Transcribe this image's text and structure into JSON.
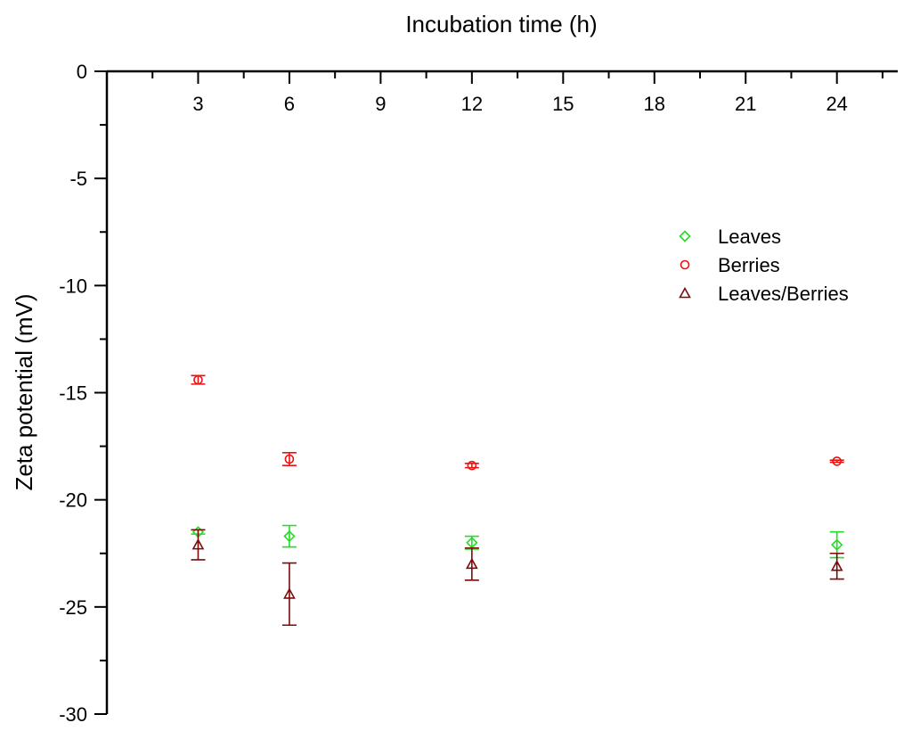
{
  "chart_data": {
    "type": "scatter",
    "title": "",
    "xlabel": "Incubation time (h)",
    "ylabel": "Zeta potential (mV)",
    "xlim": [
      0,
      26
    ],
    "ylim": [
      -30,
      0
    ],
    "x_ticks": [
      3,
      6,
      9,
      12,
      15,
      18,
      21,
      24
    ],
    "y_ticks": [
      0,
      -5,
      -10,
      -15,
      -20,
      -25,
      -30
    ],
    "x_axis_position": "top",
    "grid": false,
    "legend_position": "right",
    "series": [
      {
        "name": "Leaves",
        "marker": "diamond",
        "color": "#22dd22",
        "points": [
          {
            "x": 3,
            "y": -21.5,
            "err": 0.1
          },
          {
            "x": 6,
            "y": -21.7,
            "err": 0.5
          },
          {
            "x": 12,
            "y": -22.0,
            "err": 0.3
          },
          {
            "x": 24,
            "y": -22.1,
            "err": 0.6
          }
        ]
      },
      {
        "name": "Berries",
        "marker": "circle",
        "color": "#ee1111",
        "points": [
          {
            "x": 3,
            "y": -14.4,
            "err": 0.2
          },
          {
            "x": 6,
            "y": -18.1,
            "err": 0.3
          },
          {
            "x": 12,
            "y": -18.4,
            "err": 0.1
          },
          {
            "x": 24,
            "y": -18.2,
            "err": 0.05
          }
        ]
      },
      {
        "name": "Leaves/Berries",
        "marker": "triangle",
        "color": "#7a0b0b",
        "points": [
          {
            "x": 3,
            "y": -22.1,
            "err": 0.7
          },
          {
            "x": 6,
            "y": -24.4,
            "err": 1.45
          },
          {
            "x": 12,
            "y": -23.0,
            "err": 0.75
          },
          {
            "x": 24,
            "y": -23.1,
            "err": 0.6
          }
        ]
      }
    ]
  }
}
